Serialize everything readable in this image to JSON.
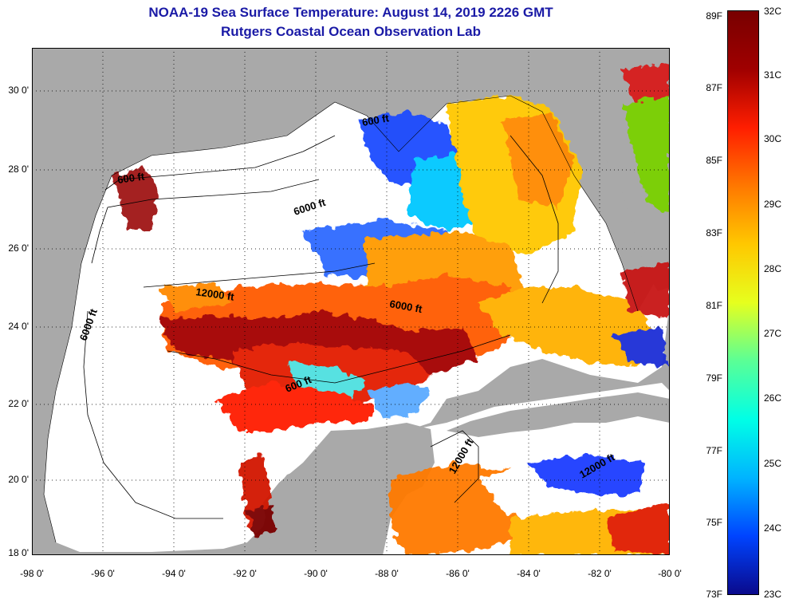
{
  "header": {
    "title_line1": "NOAA-19 Sea Surface Temperature:  August 14, 2019 2226 GMT",
    "title_line2": "Rutgers Coastal Ocean Observation Lab"
  },
  "axes": {
    "lat_labels": [
      "30 0'",
      "28 0'",
      "26 0'",
      "24 0'",
      "22 0'",
      "20 0'",
      "18 0'"
    ],
    "lon_labels": [
      "-98 0'",
      "-96 0'",
      "-94 0'",
      "-92 0'",
      "-90 0'",
      "-88 0'",
      "-86 0'",
      "-84 0'",
      "-82 0'",
      "-80 0'"
    ],
    "lat_range": [
      18,
      31
    ],
    "lon_range": [
      -98,
      -80
    ],
    "grid": "dotted"
  },
  "contours": {
    "labels": [
      "600 ft",
      "6000 ft",
      "600 ft",
      "12000 ft",
      "6000 ft",
      "6000 ft",
      "600 ft",
      "12000 ft",
      "12000 ft"
    ]
  },
  "colorbar": {
    "fahrenheit_labels": [
      "89F",
      "87F",
      "85F",
      "83F",
      "81F",
      "79F",
      "77F",
      "75F",
      "73F"
    ],
    "celsius_labels": [
      "32C",
      "31C",
      "30C",
      "29C",
      "28C",
      "27C",
      "26C",
      "25C",
      "24C",
      "23C"
    ],
    "range_c": [
      23,
      32
    ],
    "colors": [
      "#0a0a8c",
      "#0044ff",
      "#00b4ff",
      "#00ffe6",
      "#5aff96",
      "#e6ff1e",
      "#ffc800",
      "#ff7800",
      "#ff1e00",
      "#a00000",
      "#780000"
    ]
  },
  "colors": {
    "land": "#a9a9a9",
    "no_data": "#ffffff",
    "title": "#1a1aa6"
  }
}
